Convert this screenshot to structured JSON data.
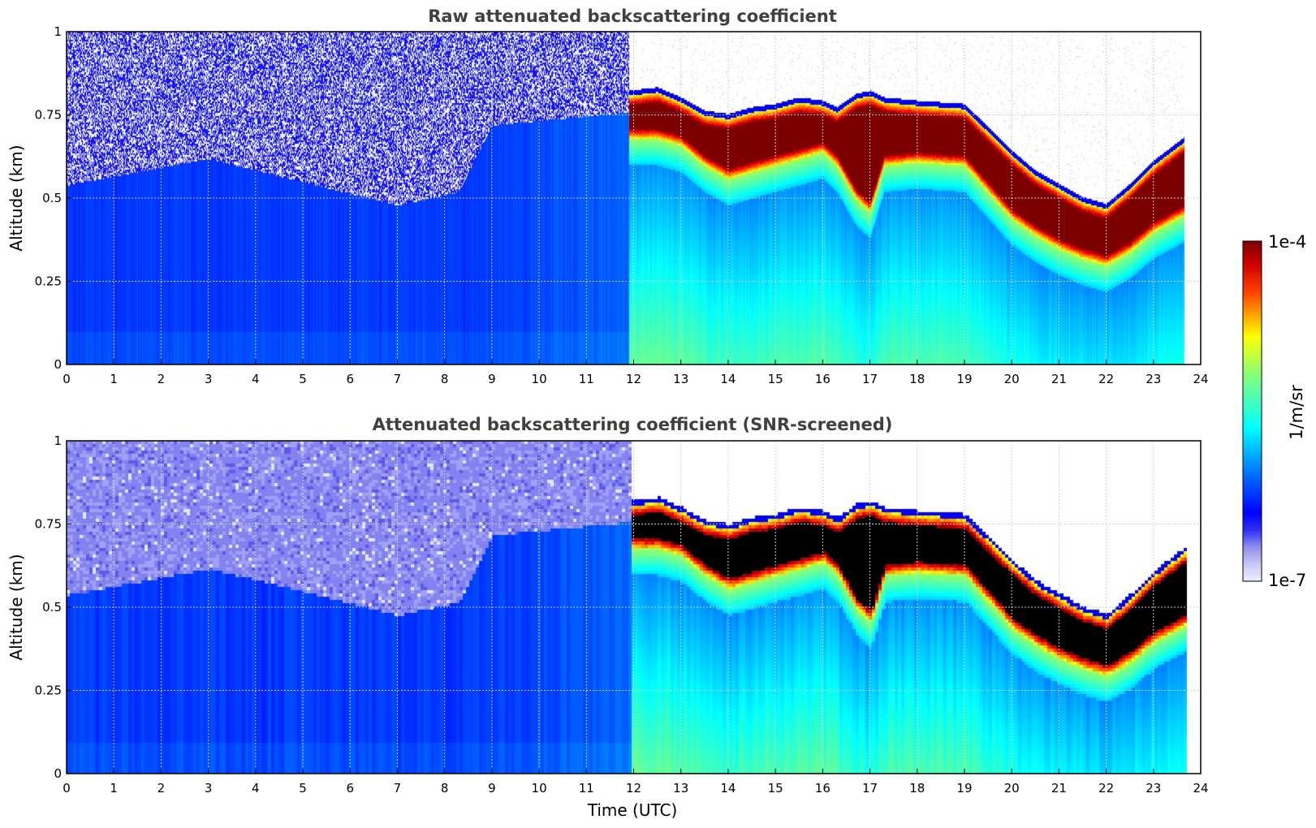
{
  "chart_data": [
    {
      "type": "heatmap",
      "title": "Raw attenuated backscattering coefficient",
      "xlabel": "",
      "ylabel": "Altitude (km)",
      "xlim": [
        0,
        24
      ],
      "ylim": [
        0,
        1
      ],
      "x_ticks": [
        "0",
        "1",
        "2",
        "3",
        "4",
        "5",
        "6",
        "7",
        "8",
        "9",
        "10",
        "11",
        "12",
        "13",
        "14",
        "15",
        "16",
        "17",
        "18",
        "19",
        "20",
        "21",
        "22",
        "23",
        "24"
      ],
      "y_ticks": [
        "0",
        "0.25",
        "0.5",
        "0.75",
        "1"
      ],
      "grid": true,
      "data_end_hour": 23.65,
      "noise_top_km": [
        [
          0,
          0.54
        ],
        [
          3,
          0.62
        ],
        [
          5,
          0.55
        ],
        [
          7,
          0.48
        ],
        [
          8.3,
          0.52
        ],
        [
          9,
          0.72
        ],
        [
          11.9,
          0.76
        ]
      ],
      "cloud_layer": {
        "hours": [
          11.9,
          12.5,
          13,
          13.5,
          14,
          14.5,
          15,
          15.5,
          16,
          16.3,
          16.7,
          17,
          17.3,
          18,
          19,
          19.5,
          20,
          20.5,
          21,
          21.5,
          22,
          22.5,
          23,
          23.65
        ],
        "top_km": [
          0.81,
          0.82,
          0.79,
          0.75,
          0.74,
          0.76,
          0.77,
          0.79,
          0.78,
          0.76,
          0.8,
          0.81,
          0.79,
          0.78,
          0.77,
          0.7,
          0.63,
          0.57,
          0.53,
          0.49,
          0.47,
          0.53,
          0.6,
          0.67
        ],
        "base_km": [
          0.68,
          0.68,
          0.66,
          0.6,
          0.56,
          0.58,
          0.6,
          0.62,
          0.64,
          0.6,
          0.5,
          0.46,
          0.6,
          0.61,
          0.6,
          0.52,
          0.44,
          0.39,
          0.35,
          0.32,
          0.3,
          0.34,
          0.4,
          0.45
        ]
      }
    },
    {
      "type": "heatmap",
      "title": "Attenuated backscattering coefficient (SNR-screened)",
      "xlabel": "Time (UTC)",
      "ylabel": "Altitude (km)",
      "xlim": [
        0,
        24
      ],
      "ylim": [
        0,
        1
      ],
      "x_ticks": [
        "0",
        "1",
        "2",
        "3",
        "4",
        "5",
        "6",
        "7",
        "8",
        "9",
        "10",
        "11",
        "12",
        "13",
        "14",
        "15",
        "16",
        "17",
        "18",
        "19",
        "20",
        "21",
        "22",
        "23",
        "24"
      ],
      "y_ticks": [
        "0",
        "0.25",
        "0.5",
        "0.75",
        "1"
      ],
      "grid": true,
      "saturated_color": "#000000"
    }
  ],
  "colorbar": {
    "label": "1/m/sr",
    "max_label": "1e-4",
    "min_label": "1e-7",
    "scale": "log",
    "colormap": "jet",
    "low_colors": [
      "#eeeefb",
      "#c8c8f5",
      "#8f8ff0",
      "#5050f0"
    ],
    "high_color": "#7d0000"
  }
}
